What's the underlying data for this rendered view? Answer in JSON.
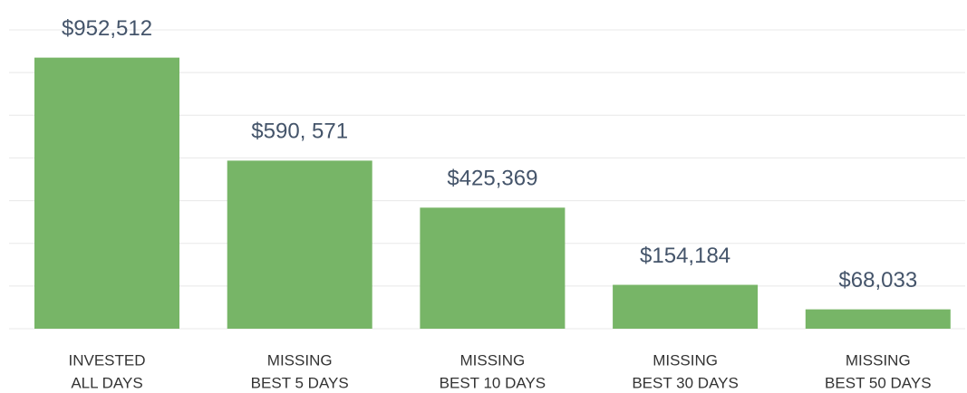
{
  "chart_data": {
    "type": "bar",
    "categories": [
      [
        "INVESTED",
        "ALL DAYS"
      ],
      [
        "MISSING",
        "BEST 5 DAYS"
      ],
      [
        "MISSING",
        "BEST 10 DAYS"
      ],
      [
        "MISSING",
        "BEST 30 DAYS"
      ],
      [
        "MISSING",
        "BEST 50 DAYS"
      ]
    ],
    "values": [
      952512,
      590571,
      425369,
      154184,
      68033
    ],
    "value_labels": [
      "$952,512",
      "$590, 571",
      "$425,369",
      "$154,184",
      "$68,033"
    ],
    "color": "#77b567",
    "ylim": [
      0,
      1050000
    ],
    "yticks": [
      0,
      150000,
      300000,
      450000,
      600000,
      750000,
      900000,
      1050000
    ],
    "grid": true
  }
}
